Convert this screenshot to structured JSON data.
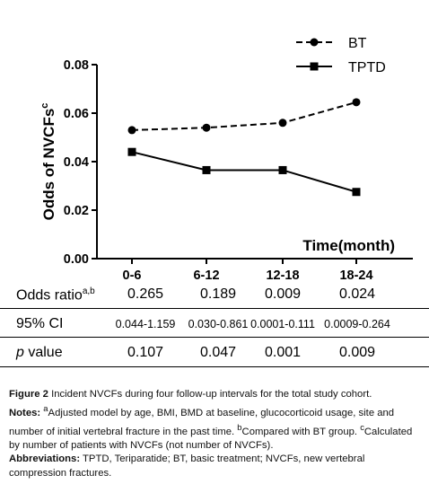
{
  "chart_data": {
    "type": "line",
    "categories": [
      "0-6",
      "6-12",
      "12-18",
      "18-24"
    ],
    "series": [
      {
        "name": "BT",
        "values": [
          0.053,
          0.054,
          0.056,
          0.0645
        ],
        "marker": "circle",
        "dash": "dashed"
      },
      {
        "name": "TPTD",
        "values": [
          0.044,
          0.0365,
          0.0365,
          0.0275
        ],
        "marker": "square",
        "dash": "solid"
      }
    ],
    "ylabel_main": "Odds of NVCFs",
    "ylabel_sup": "c",
    "xlabel": "Time(month)",
    "ylim": [
      0,
      0.08
    ],
    "yticks": [
      "0.00",
      "0.02",
      "0.04",
      "0.06",
      "0.08"
    ],
    "legend_position": "top-right",
    "grid": false
  },
  "table": {
    "rows": [
      {
        "label": "Odds ratio",
        "label_sup": "a,b",
        "values": [
          "0.265",
          "0.189",
          "0.009",
          "0.024"
        ],
        "small": false
      },
      {
        "label": "95% CI",
        "label_sup": "",
        "values": [
          "0.044-1.159",
          "0.030-0.861",
          "0.0001-0.111",
          "0.0009-0.264"
        ],
        "small": true
      },
      {
        "label": "value",
        "label_prefix": "p",
        "label_sup": "",
        "values": [
          "0.107",
          "0.047",
          "0.001",
          "0.009"
        ],
        "small": false
      }
    ]
  },
  "caption": {
    "figure_label": "Figure 2",
    "figure_text": " Incident NVCFs during four follow-up intervals for the total study cohort.",
    "notes_label": "Notes:",
    "note_a_sup": "a",
    "note_a_text": "Adjusted model by age, BMI, BMD at baseline, glucocorticoid usage, site and number of initial vertebral fracture in the past time. ",
    "note_b_sup": "b",
    "note_b_text": "Compared with BT group. ",
    "note_c_sup": "c",
    "note_c_text": "Calculated by number of patients with NVCFs (not number of NVCFs).",
    "abbrev_label": "Abbreviations:",
    "abbrev_text": " TPTD, Teriparatide; BT, basic treatment; NVCFs, new vertebral compression fractures."
  }
}
